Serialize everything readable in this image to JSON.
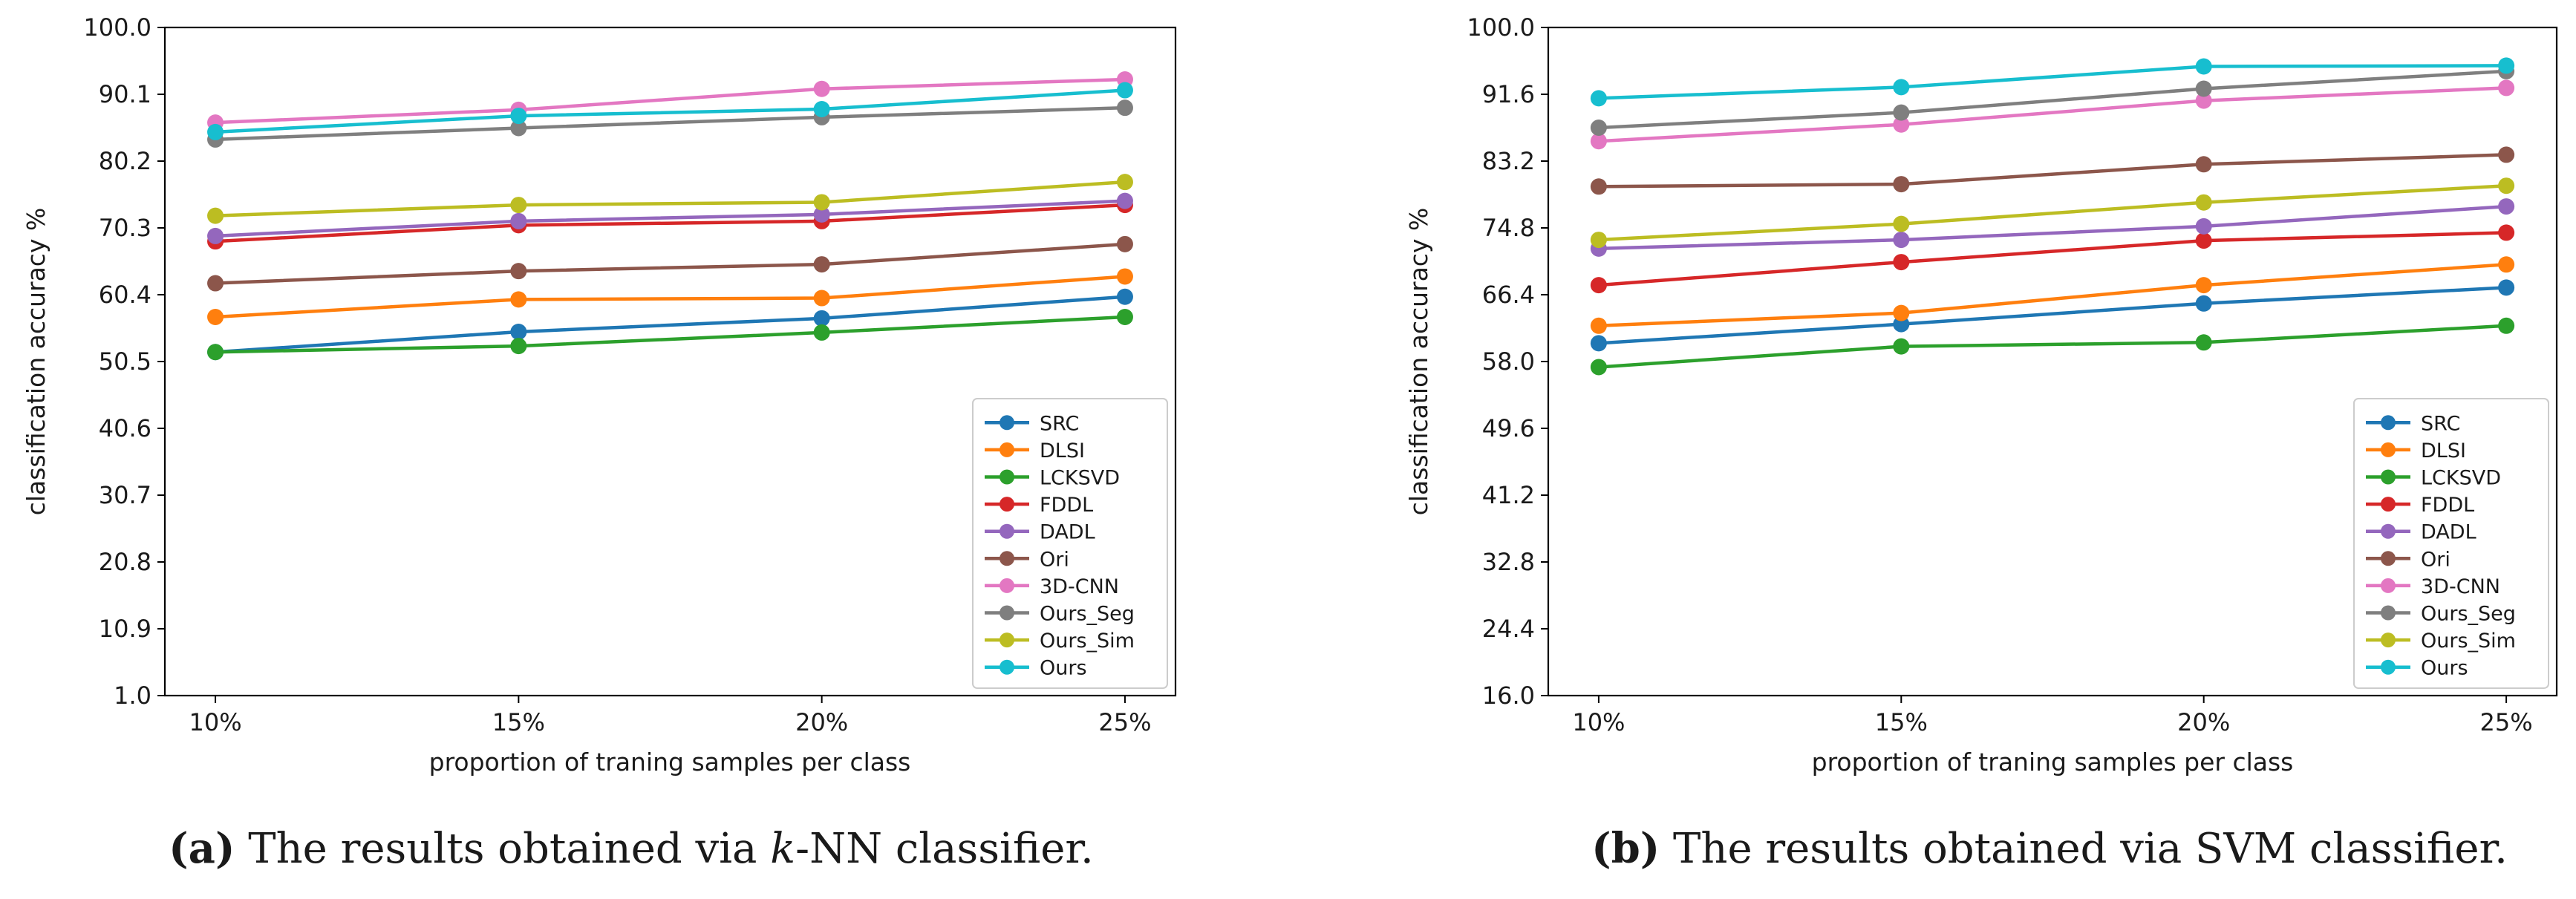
{
  "chart_data": [
    {
      "type": "line",
      "panel_label": "(a)",
      "caption": {
        "label": "(a)",
        "prefix": "The results obtained via ",
        "emph": "k",
        "suffix": "-NN classifier."
      },
      "xlabel": "proportion of traning samples per class",
      "ylabel": "classification accuracy %",
      "categories": [
        "10%",
        "15%",
        "20%",
        "25%"
      ],
      "ylim": [
        1.0,
        100.0
      ],
      "yticks": [
        "1.0",
        "10.9",
        "20.8",
        "30.7",
        "40.6",
        "50.5",
        "60.4",
        "70.3",
        "80.2",
        "90.1",
        "100.0"
      ],
      "legend_position": "lower-right",
      "series": [
        {
          "name": "SRC",
          "color": "#1f77b4",
          "values": [
            51.9,
            54.9,
            56.9,
            60.1
          ]
        },
        {
          "name": "DLSI",
          "color": "#ff7f0e",
          "values": [
            57.1,
            59.7,
            59.9,
            63.1
          ]
        },
        {
          "name": "LCKSVD",
          "color": "#2ca02c",
          "values": [
            51.9,
            52.8,
            54.8,
            57.1
          ]
        },
        {
          "name": "FDDL",
          "color": "#d62728",
          "values": [
            68.3,
            70.7,
            71.3,
            73.7
          ]
        },
        {
          "name": "DADL",
          "color": "#9467bd",
          "values": [
            69.1,
            71.3,
            72.3,
            74.3
          ]
        },
        {
          "name": "Ori",
          "color": "#8c564b",
          "values": [
            62.1,
            63.9,
            64.9,
            67.9
          ]
        },
        {
          "name": "3D-CNN",
          "color": "#e377c2",
          "values": [
            85.9,
            87.8,
            90.9,
            92.3
          ]
        },
        {
          "name": "Ours_Seg",
          "color": "#7f7f7f",
          "values": [
            83.4,
            85.1,
            86.7,
            88.1
          ]
        },
        {
          "name": "Ours_Sim",
          "color": "#bcbd22",
          "values": [
            72.1,
            73.7,
            74.1,
            77.1
          ]
        },
        {
          "name": "Ours",
          "color": "#17becf",
          "values": [
            84.5,
            86.9,
            87.9,
            90.7
          ]
        }
      ]
    },
    {
      "type": "line",
      "panel_label": "(b)",
      "caption": {
        "label": "(b)",
        "prefix": "The results obtained via SVM classifier.",
        "emph": "",
        "suffix": ""
      },
      "xlabel": "proportion of traning samples per class",
      "ylabel": "classification accuracy %",
      "categories": [
        "10%",
        "15%",
        "20%",
        "25%"
      ],
      "ylim": [
        16.0,
        100.0
      ],
      "yticks": [
        "16.0",
        "24.4",
        "32.8",
        "41.2",
        "49.6",
        "58.0",
        "66.4",
        "74.8",
        "83.2",
        "91.6",
        "100.0"
      ],
      "legend_position": "lower-right",
      "series": [
        {
          "name": "SRC",
          "color": "#1f77b4",
          "values": [
            60.3,
            62.7,
            65.3,
            67.3
          ]
        },
        {
          "name": "DLSI",
          "color": "#ff7f0e",
          "values": [
            62.5,
            64.1,
            67.6,
            70.2
          ]
        },
        {
          "name": "LCKSVD",
          "color": "#2ca02c",
          "values": [
            57.3,
            59.9,
            60.4,
            62.5
          ]
        },
        {
          "name": "FDDL",
          "color": "#d62728",
          "values": [
            67.6,
            70.5,
            73.2,
            74.2
          ]
        },
        {
          "name": "DADL",
          "color": "#9467bd",
          "values": [
            72.2,
            73.3,
            75.0,
            77.5
          ]
        },
        {
          "name": "Ori",
          "color": "#8c564b",
          "values": [
            80.0,
            80.3,
            82.8,
            84.0
          ]
        },
        {
          "name": "3D-CNN",
          "color": "#e377c2",
          "values": [
            85.7,
            87.8,
            90.8,
            92.4
          ]
        },
        {
          "name": "Ours_Seg",
          "color": "#7f7f7f",
          "values": [
            87.4,
            89.3,
            92.3,
            94.5
          ]
        },
        {
          "name": "Ours_Sim",
          "color": "#bcbd22",
          "values": [
            73.3,
            75.3,
            78.0,
            80.1
          ]
        },
        {
          "name": "Ours",
          "color": "#17becf",
          "values": [
            91.1,
            92.5,
            95.1,
            95.2
          ]
        }
      ]
    }
  ]
}
